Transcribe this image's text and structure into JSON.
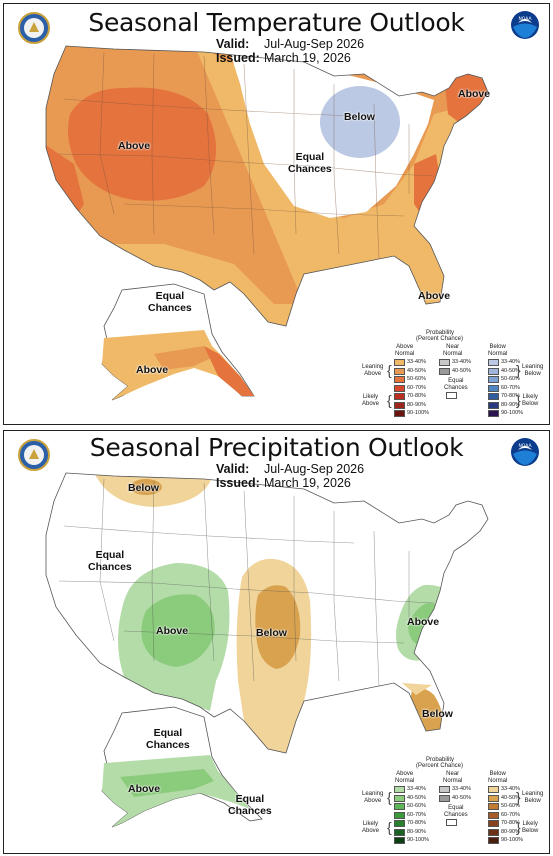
{
  "temperature": {
    "title": "Seasonal Temperature Outlook",
    "valid_label": "Valid:",
    "valid_value": "Jul-Aug-Sep 2026",
    "issued_label": "Issued:",
    "issued_value": "March 19, 2026",
    "regions": {
      "above_west": "Above",
      "below_greatlakes": "Below",
      "equal_chances_central": "Equal\nChances",
      "above_northeast": "Above",
      "above_florida": "Above",
      "equal_chances_alaska": "Equal\nChances",
      "above_alaska": "Above"
    },
    "colors": {
      "t33": "#f0b968",
      "t40": "#e89a52",
      "t50": "#e4733d",
      "t60": "#d8462c",
      "t70": "#bb2f20",
      "t80": "#9c241a",
      "t90": "#6b1410",
      "b33": "#bcc9e4",
      "b40": "#9fb6dc",
      "b50": "#7ea3d2",
      "b60": "#4f86c2",
      "b70": "#2f5c9e",
      "b80": "#283b7e",
      "b90": "#2a1550"
    }
  },
  "precipitation": {
    "title": "Seasonal Precipitation Outlook",
    "valid_label": "Valid:",
    "valid_value": "Jul-Aug-Sep 2026",
    "issued_label": "Issued:",
    "issued_value": "March 19, 2026",
    "regions": {
      "below_north": "Below",
      "equal_chances_west": "Equal\nChances",
      "above_southwest": "Above",
      "below_plains": "Below",
      "above_southeast": "Above",
      "below_florida": "Below",
      "equal_chances_alaska": "Equal\nChances",
      "above_alaska": "Above",
      "equal_chances_panhandle": "Equal\nChances"
    },
    "colors": {
      "a33": "#b4dca8",
      "a40": "#8bcb7c",
      "a50": "#5fb55a",
      "a60": "#3a9a3c",
      "a70": "#26802c",
      "a80": "#196223",
      "a90": "#0c3f14",
      "b33": "#f1d49a",
      "b40": "#d8a24f",
      "b50": "#c07c32",
      "b60": "#a55e28",
      "b70": "#87431f",
      "b80": "#6a3117",
      "b90": "#4a1f0e"
    }
  },
  "legend": {
    "title": "Probability",
    "subtitle": "(Percent Chance)",
    "above_header": "Above\nNormal",
    "near_header": "Near\nNormal",
    "below_header": "Below\nNormal",
    "ranges": [
      "33-40%",
      "40-50%",
      "50-60%",
      "60-70%",
      "70-80%",
      "80-90%",
      "90-100%"
    ],
    "near_ranges": [
      "33-40%",
      "40-50%"
    ],
    "equal_chances": "Equal\nChances",
    "leaning_above": "Leaning\nAbove",
    "likely_above": "Likely\nAbove",
    "leaning_below": "Leaning\nBelow",
    "likely_below": "Likely\nBelow",
    "near_colors": [
      "#c8c8c8",
      "#9a9a9a"
    ]
  },
  "logos": {
    "noaa_text": "NOAA"
  }
}
